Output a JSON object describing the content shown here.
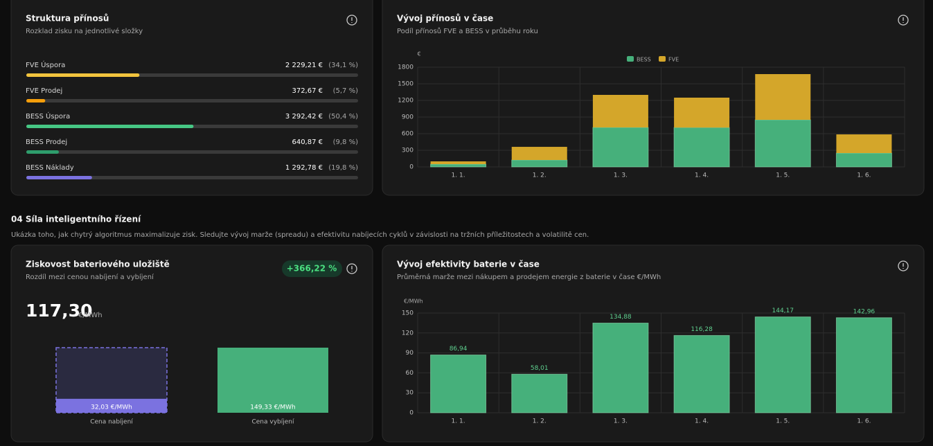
{
  "benefit_structure": {
    "title": "Struktura přínosů",
    "subtitle": "Rozklad zisku na jednotlivé složky",
    "items": [
      {
        "name": "FVE Úspora",
        "value_label": "2 229,21 €",
        "share": 34.1,
        "share_label": "(34,1 %)",
        "color": "#f2c43d"
      },
      {
        "name": "FVE Prodej",
        "value_label": "372,67 €",
        "share": 5.7,
        "share_label": "(5,7 %)",
        "color": "#f59e0b"
      },
      {
        "name": "BESS Úspora",
        "value_label": "3 292,42 €",
        "share": 50.4,
        "share_label": "(50,4 %)",
        "color": "#46c784"
      },
      {
        "name": "BESS Prodej",
        "value_label": "640,87 €",
        "share": 9.8,
        "share_label": "(9,8 %)",
        "color": "#2e9d6c"
      },
      {
        "name": "BESS Náklady",
        "value_label": "1 292,78 €",
        "share": 19.8,
        "share_label": "(19,8 %)",
        "color": "#7b72e0"
      }
    ]
  },
  "section": {
    "title": "04 Síla inteligentního řízení",
    "description": "Ukázka toho, jak chytrý algoritmus maximalizuje zisk. Sledujte vývoj marže (spreadu) a efektivitu nabíjecích cyklů v závislosti na tržních příležitostech a volatilitě cen."
  },
  "chart_data": [
    {
      "type": "stacked-bar",
      "title": "Vývoj přínosů v čase",
      "subtitle": "Podíl přínosů FVE a BESS v průběhu roku",
      "ylabel": "€",
      "categories": [
        "1. 1.",
        "1. 2.",
        "1. 3.",
        "1. 4.",
        "1. 5.",
        "1. 6."
      ],
      "series": [
        {
          "name": "BESS",
          "color": "#46b07b",
          "values": [
            50,
            125,
            712,
            710,
            850,
            250
          ]
        },
        {
          "name": "FVE",
          "color": "#d4a62a",
          "values": [
            50,
            237,
            588,
            540,
            825,
            337
          ]
        }
      ],
      "ylim": [
        0,
        1800
      ],
      "yticks": [
        0,
        300,
        600,
        900,
        1200,
        1500,
        1800
      ],
      "grid": true
    },
    {
      "type": "comparison-bar",
      "title": "Ziskovost bateriového uložiště",
      "subtitle": "Rozdíl mezi cenou nabíjení a vybíjení",
      "badge": "+366,22 %",
      "headline": "117,30",
      "headline_unit": "€/MWh",
      "categories": [
        "Cena nabíjení",
        "Cena vybíjení"
      ],
      "values": [
        32.03,
        149.33
      ],
      "value_labels": [
        "32,03 €/MWh",
        "149,33 €/MWh"
      ],
      "colors": [
        "#7b72e0",
        "#46b07b"
      ]
    },
    {
      "type": "bar",
      "title": "Vývoj efektivity baterie v čase",
      "subtitle": "Průměrná marže mezi nákupem a prodejem energie z baterie v čase €/MWh",
      "ylabel": "€/MWh",
      "categories": [
        "1. 1.",
        "1. 2.",
        "1. 3.",
        "1. 4.",
        "1. 5.",
        "1. 6."
      ],
      "values": [
        86.94,
        58.01,
        134.88,
        116.28,
        144.17,
        142.96
      ],
      "value_labels": [
        "86,94",
        "58,01",
        "134,88",
        "116,28",
        "144,17",
        "142,96"
      ],
      "color": "#46b07b",
      "ylim": [
        0,
        150
      ],
      "yticks": [
        0,
        30,
        60,
        90,
        120,
        150
      ],
      "grid": true
    }
  ]
}
